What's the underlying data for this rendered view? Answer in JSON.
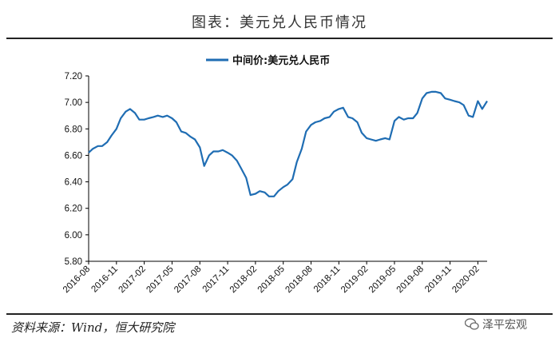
{
  "header": {
    "title": "图表：美元兑人民币情况"
  },
  "footer": {
    "source": "资料来源：Wind，恒大研究院",
    "watermark": "泽平宏观"
  },
  "colors": {
    "series": "#1f6db3",
    "axis": "#000000",
    "rule": "#222222"
  },
  "chart_data": {
    "type": "line",
    "title": "",
    "xlabel": "",
    "ylabel": "",
    "ylim": [
      5.8,
      7.2
    ],
    "yticks": [
      "7.20",
      "7.00",
      "6.80",
      "6.60",
      "6.40",
      "6.20",
      "6.00",
      "5.80"
    ],
    "xticks": [
      "2016-08",
      "2016-11",
      "2017-02",
      "2017-05",
      "2017-08",
      "2017-11",
      "2018-02",
      "2018-05",
      "2018-08",
      "2018-11",
      "2019-02",
      "2019-05",
      "2019-08",
      "2019-11",
      "2020-02"
    ],
    "xrange": [
      "2016-08",
      "2020-03"
    ],
    "grid": false,
    "legend_position": "top-center",
    "series": [
      {
        "name": "中间价:美元兑人民币",
        "x": [
          "2016-08",
          "2016-08-15",
          "2016-09",
          "2016-09-15",
          "2016-10",
          "2016-10-15",
          "2016-11",
          "2016-11-15",
          "2016-12",
          "2016-12-15",
          "2017-01",
          "2017-01-15",
          "2017-02",
          "2017-02-15",
          "2017-03",
          "2017-03-15",
          "2017-04",
          "2017-04-15",
          "2017-05",
          "2017-05-15",
          "2017-06",
          "2017-06-15",
          "2017-07",
          "2017-07-15",
          "2017-08",
          "2017-08-15",
          "2017-09",
          "2017-09-15",
          "2017-10",
          "2017-10-15",
          "2017-11",
          "2017-11-15",
          "2017-12",
          "2017-12-15",
          "2018-01",
          "2018-01-15",
          "2018-02",
          "2018-02-15",
          "2018-03",
          "2018-03-15",
          "2018-04",
          "2018-04-15",
          "2018-05",
          "2018-05-15",
          "2018-06",
          "2018-06-15",
          "2018-07",
          "2018-07-15",
          "2018-08",
          "2018-08-15",
          "2018-09",
          "2018-09-15",
          "2018-10",
          "2018-10-15",
          "2018-11",
          "2018-11-15",
          "2018-12",
          "2018-12-15",
          "2019-01",
          "2019-01-15",
          "2019-02",
          "2019-02-15",
          "2019-03",
          "2019-03-15",
          "2019-04",
          "2019-04-15",
          "2019-05",
          "2019-05-15",
          "2019-06",
          "2019-06-15",
          "2019-07",
          "2019-07-15",
          "2019-08",
          "2019-08-15",
          "2019-09",
          "2019-09-15",
          "2019-10",
          "2019-10-15",
          "2019-11",
          "2019-11-15",
          "2019-12",
          "2019-12-15",
          "2020-01",
          "2020-01-15",
          "2020-02",
          "2020-02-15",
          "2020-03"
        ],
        "values": [
          6.62,
          6.65,
          6.67,
          6.67,
          6.7,
          6.75,
          6.8,
          6.88,
          6.93,
          6.95,
          6.92,
          6.87,
          6.87,
          6.88,
          6.89,
          6.9,
          6.89,
          6.9,
          6.88,
          6.85,
          6.78,
          6.77,
          6.74,
          6.72,
          6.66,
          6.52,
          6.6,
          6.63,
          6.63,
          6.64,
          6.62,
          6.6,
          6.56,
          6.5,
          6.43,
          6.3,
          6.31,
          6.33,
          6.32,
          6.29,
          6.29,
          6.33,
          6.36,
          6.38,
          6.42,
          6.55,
          6.65,
          6.78,
          6.83,
          6.85,
          6.86,
          6.88,
          6.89,
          6.93,
          6.95,
          6.96,
          6.89,
          6.88,
          6.85,
          6.77,
          6.73,
          6.72,
          6.71,
          6.72,
          6.73,
          6.72,
          6.86,
          6.89,
          6.87,
          6.88,
          6.88,
          6.92,
          7.03,
          7.07,
          7.08,
          7.08,
          7.07,
          7.03,
          7.02,
          7.01,
          7.0,
          6.98,
          6.9,
          6.89,
          7.01,
          6.95,
          7.01
        ]
      }
    ]
  }
}
